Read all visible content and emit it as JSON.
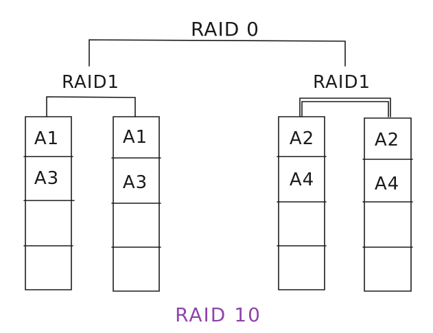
{
  "top_label": "RAID 0",
  "groups": [
    {
      "label": "RAID1",
      "disks": [
        {
          "blocks": [
            "A1",
            "A3",
            "",
            ""
          ]
        },
        {
          "blocks": [
            "A1",
            "A3",
            "",
            ""
          ]
        }
      ]
    },
    {
      "label": "RAID1",
      "disks": [
        {
          "blocks": [
            "A2",
            "A4",
            "",
            ""
          ]
        },
        {
          "blocks": [
            "A2",
            "A4",
            "",
            ""
          ]
        }
      ]
    }
  ],
  "caption": "RAID 10",
  "colors": {
    "ink": "#1a1a1a",
    "caption": "#8e44ad"
  }
}
